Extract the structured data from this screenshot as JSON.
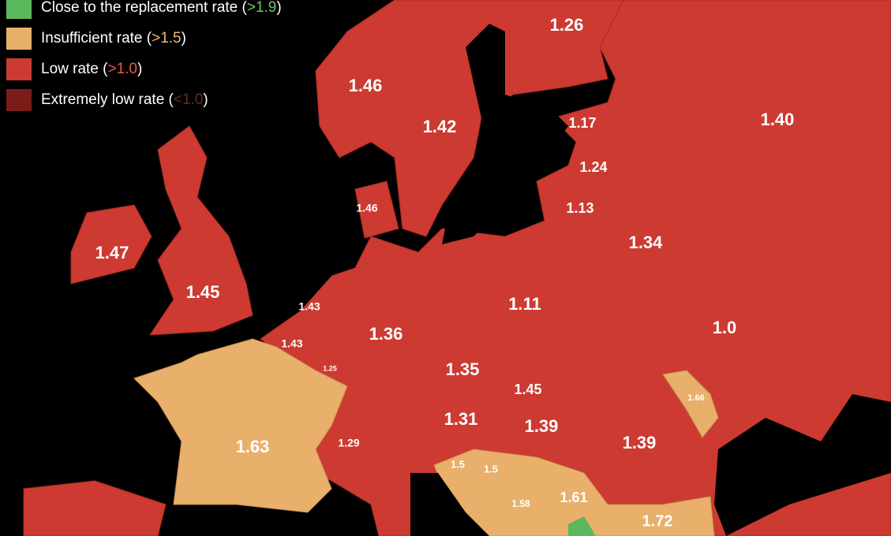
{
  "legend": [
    {
      "label": "Close to the replacement rate (",
      "threshold": ">1.9",
      "close": ")",
      "color": "#5cb85c"
    },
    {
      "label": "Insufficient rate (",
      "threshold": ">1.5",
      "close": ")",
      "color": "#e8b06a"
    },
    {
      "label": "Low rate (",
      "threshold": ">1.0",
      "close": ")",
      "color": "#cc3a32"
    },
    {
      "label": "Extremely low rate (",
      "threshold": "<1.0",
      "close": ")",
      "color": "#7a1c18"
    }
  ],
  "regions": [
    {
      "value": "1.26"
    },
    {
      "value": "1.46"
    },
    {
      "value": "1.42"
    },
    {
      "value": "1.17"
    },
    {
      "value": "1.40"
    },
    {
      "value": "1.24"
    },
    {
      "value": "1.46"
    },
    {
      "value": "1.13"
    },
    {
      "value": "1.34"
    },
    {
      "value": "1.47"
    },
    {
      "value": "1.45"
    },
    {
      "value": "1.43"
    },
    {
      "value": "1.11"
    },
    {
      "value": "1.43"
    },
    {
      "value": "1.36"
    },
    {
      "value": "1.0"
    },
    {
      "value": "1.25"
    },
    {
      "value": "1.35"
    },
    {
      "value": "1.45"
    },
    {
      "value": "1.66"
    },
    {
      "value": "1.31"
    },
    {
      "value": "1.39"
    },
    {
      "value": "1.29"
    },
    {
      "value": "1.63"
    },
    {
      "value": "1.39"
    },
    {
      "value": "1.5"
    },
    {
      "value": "1.5"
    },
    {
      "value": "1.61"
    },
    {
      "value": "1.58"
    },
    {
      "value": "1.72"
    }
  ]
}
